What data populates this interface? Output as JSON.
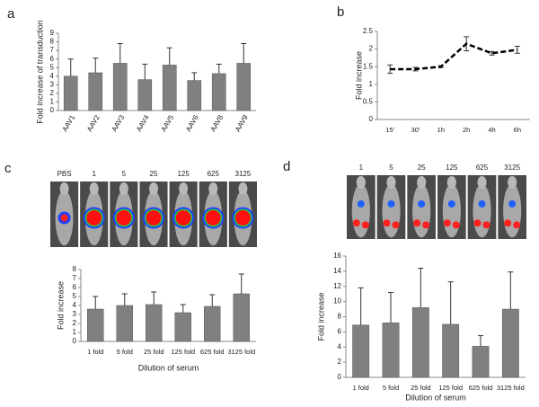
{
  "chart_data": [
    {
      "panel": "a",
      "type": "bar",
      "ylabel": "Fold increase of transduction",
      "categories": [
        "AAV1",
        "AAV2",
        "AAV3",
        "AAV4",
        "AAV5",
        "AAV6",
        "AAV8",
        "AAV9"
      ],
      "values": [
        4.0,
        4.4,
        5.5,
        3.6,
        5.3,
        3.5,
        4.3,
        5.5
      ],
      "errors": [
        2.0,
        1.7,
        2.3,
        1.8,
        2.0,
        0.9,
        1.1,
        2.3
      ],
      "color": "#808080",
      "ylim": [
        0,
        9
      ],
      "yticks": [
        0,
        1,
        2,
        3,
        4,
        5,
        6,
        7,
        8,
        9
      ]
    },
    {
      "panel": "b",
      "type": "line",
      "ylabel": "Fold increase",
      "categories": [
        "15'",
        "30'",
        "1h",
        "2h",
        "4h",
        "6h"
      ],
      "values": [
        1.43,
        1.43,
        1.5,
        2.15,
        1.88,
        1.98
      ],
      "errors": [
        0.12,
        0.05,
        0.03,
        0.2,
        0.05,
        0.1
      ],
      "color": "#000000",
      "ylim": [
        0,
        2.5
      ],
      "yticks": [
        0,
        0.5,
        1,
        1.5,
        2,
        2.5
      ]
    },
    {
      "panel": "c",
      "type": "bar",
      "ylabel": "Fold increase",
      "xlabel": "Dilution of serum",
      "image_labels": [
        "PBS",
        "1",
        "5",
        "25",
        "125",
        "625",
        "3125"
      ],
      "categories": [
        "1 fold",
        "5 fold",
        "25 fold",
        "125 fold",
        "625 fold",
        "3125 fold"
      ],
      "values": [
        3.6,
        4.0,
        4.1,
        3.2,
        3.9,
        5.3
      ],
      "errors": [
        1.4,
        1.3,
        1.4,
        0.9,
        1.3,
        2.2
      ],
      "color": "#808080",
      "ylim": [
        0,
        8
      ],
      "yticks": [
        0,
        1,
        2,
        3,
        4,
        5,
        6,
        7,
        8
      ]
    },
    {
      "panel": "d",
      "type": "bar",
      "ylabel": "Fold increase",
      "xlabel": "Dilution of serum",
      "image_labels": [
        "1",
        "5",
        "25",
        "125",
        "625",
        "3125"
      ],
      "categories": [
        "1 fold",
        "5 fold",
        "25 fold",
        "125 fold",
        "625 fold",
        "3125 fold"
      ],
      "values": [
        6.9,
        7.2,
        9.2,
        7.0,
        4.1,
        9.0
      ],
      "errors": [
        4.9,
        4.0,
        5.2,
        5.6,
        1.4,
        4.9
      ],
      "color": "#808080",
      "ylim": [
        0,
        16
      ],
      "yticks": [
        0,
        2,
        4,
        6,
        8,
        10,
        12,
        14,
        16
      ]
    }
  ]
}
